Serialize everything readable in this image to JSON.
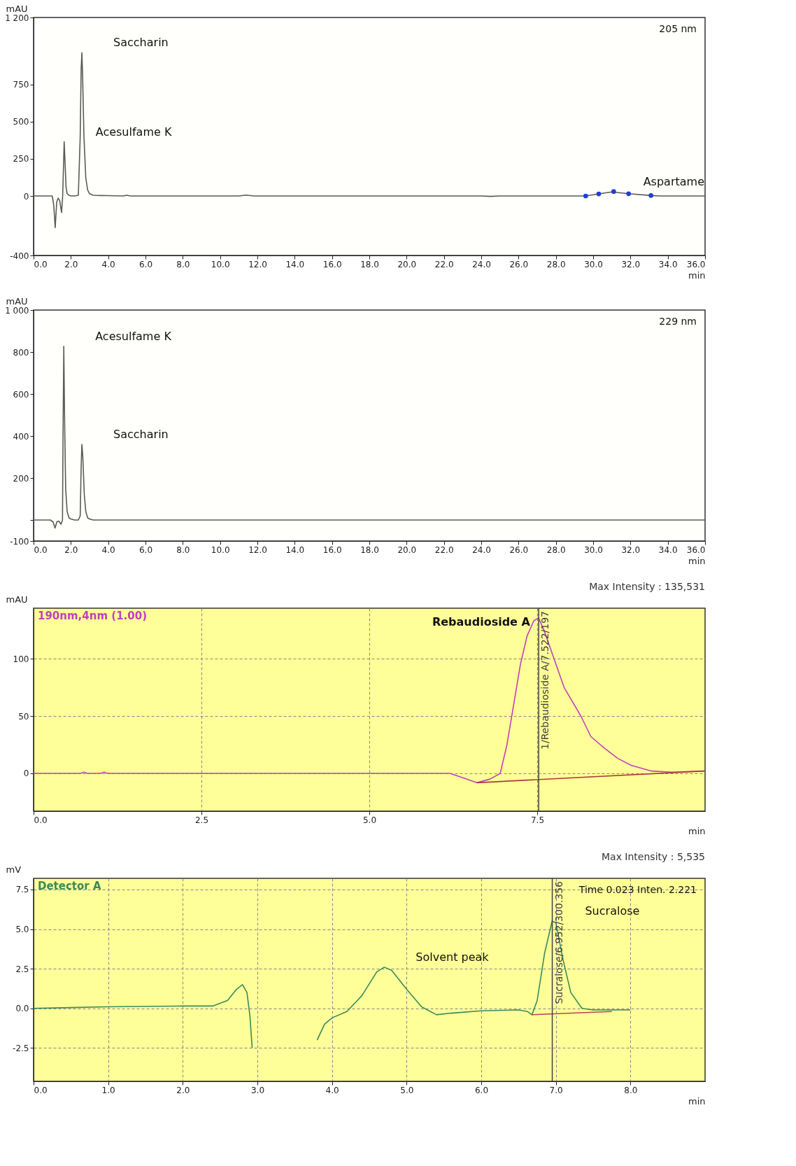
{
  "chart_data": [
    {
      "type": "line",
      "xlabel": "min",
      "ylabel": "mAU",
      "xlim": [
        0,
        36
      ],
      "ylim": [
        -400,
        1200
      ],
      "xticks": [
        {
          "value": 0,
          "label": "0.0"
        },
        {
          "value": 2,
          "label": "2.0"
        },
        {
          "value": 4,
          "label": "4.0"
        },
        {
          "value": 6,
          "label": "6.0"
        },
        {
          "value": 8,
          "label": "8.0"
        },
        {
          "value": 10,
          "label": "10.0"
        },
        {
          "value": 12,
          "label": "12.0"
        },
        {
          "value": 14,
          "label": "14.0"
        },
        {
          "value": 16,
          "label": "16.0"
        },
        {
          "value": 18,
          "label": "18.0"
        },
        {
          "value": 20,
          "label": "20.0"
        },
        {
          "value": 22,
          "label": "22.0"
        },
        {
          "value": 24,
          "label": "24.0"
        },
        {
          "value": 26,
          "label": "26.0"
        },
        {
          "value": 28,
          "label": "28.0"
        },
        {
          "value": 30,
          "label": "30.0"
        },
        {
          "value": 32,
          "label": "32.0"
        },
        {
          "value": 34,
          "label": "34.0"
        },
        {
          "value": 36,
          "label": "36.0"
        }
      ],
      "yticks": [
        -400,
        0,
        250,
        500,
        750,
        {
          "value": 1200,
          "label": "1 200"
        }
      ],
      "series": [
        {
          "color": "#5a5a5a",
          "x": [
            0,
            1.0,
            1.08,
            1.16,
            1.24,
            1.32,
            1.4,
            1.5,
            1.56,
            1.6,
            1.64,
            1.68,
            1.74,
            1.8,
            1.9,
            2.0,
            2.2,
            2.4,
            2.5,
            2.55,
            2.59,
            2.63,
            2.7,
            2.8,
            2.9,
            3.0,
            3.2,
            3.6,
            4.0,
            4.8,
            5.0,
            5.2,
            11.0,
            11.4,
            11.8,
            24.0,
            24.5,
            25.0,
            29.6,
            30.3,
            31.0,
            31.9,
            33.1,
            33.6,
            36.0
          ],
          "values": [
            0,
            0,
            -60,
            -213,
            -40,
            -15,
            -30,
            -111,
            0,
            180,
            364,
            250,
            60,
            15,
            5,
            0,
            0,
            5,
            400,
            850,
            963,
            800,
            400,
            120,
            40,
            15,
            5,
            3,
            2,
            0,
            5,
            0,
            0,
            6,
            0,
            0,
            -3,
            0,
            0,
            14,
            27,
            15,
            3,
            0,
            0
          ]
        },
        {
          "type": "scatter",
          "marker": "circle",
          "color": "#1f3fd0",
          "x": [
            29.6,
            30.3,
            31.1,
            31.9,
            33.1
          ],
          "values": [
            0,
            14,
            30,
            15,
            3
          ]
        }
      ],
      "annotations": [
        {
          "text": "Saccharin",
          "x": 2.59,
          "y": 963
        },
        {
          "text": "Acesulfame K",
          "x": 1.64,
          "y": 364
        },
        {
          "text": "Aspartame",
          "x": 31.0,
          "y": 27
        },
        "205 nm"
      ]
    },
    {
      "type": "line",
      "xlabel": "min",
      "ylabel": "mAU",
      "xlim": [
        0,
        36
      ],
      "ylim": [
        -100,
        1000
      ],
      "xticks": [
        {
          "value": 0,
          "label": "0.0"
        },
        {
          "value": 2,
          "label": "2.0"
        },
        {
          "value": 4,
          "label": "4.0"
        },
        {
          "value": 6,
          "label": "6.0"
        },
        {
          "value": 8,
          "label": "8.0"
        },
        {
          "value": 10,
          "label": "10.0"
        },
        {
          "value": 12,
          "label": "12.0"
        },
        {
          "value": 14,
          "label": "14.0"
        },
        {
          "value": 16,
          "label": "16.0"
        },
        {
          "value": 18,
          "label": "18.0"
        },
        {
          "value": 20,
          "label": "20.0"
        },
        {
          "value": 22,
          "label": "22.0"
        },
        {
          "value": 24,
          "label": "24.0"
        },
        {
          "value": 26,
          "label": "26.0"
        },
        {
          "value": 28,
          "label": "28.0"
        },
        {
          "value": 30,
          "label": "30.0"
        },
        {
          "value": 32,
          "label": "32.0"
        },
        {
          "value": 34,
          "label": "34.0"
        },
        {
          "value": 36,
          "label": "36.0"
        }
      ],
      "yticks": [
        -100,
        {
          "value": 0,
          "label": null
        },
        200,
        400,
        600,
        800,
        {
          "value": 1000,
          "label": "1 000"
        }
      ],
      "series": [
        {
          "color": "#5a5a5a",
          "x": [
            0,
            0.9,
            1.05,
            1.15,
            1.25,
            1.35,
            1.47,
            1.55,
            1.58,
            1.62,
            1.66,
            1.72,
            1.8,
            1.9,
            2.0,
            2.2,
            2.4,
            2.5,
            2.55,
            2.59,
            2.64,
            2.72,
            2.8,
            2.9,
            3.0,
            3.2,
            3.4,
            36.0
          ],
          "values": [
            0,
            0,
            -10,
            -38,
            -8,
            -5,
            -20,
            0,
            400,
            827,
            500,
            150,
            40,
            10,
            5,
            0,
            0,
            20,
            250,
            360,
            300,
            120,
            40,
            10,
            5,
            0,
            0,
            0
          ]
        }
      ],
      "annotations": [
        {
          "text": "Acesulfame K",
          "x": 1.62,
          "y": 827
        },
        {
          "text": "Saccharin",
          "x": 2.59,
          "y": 360
        },
        "229 nm"
      ]
    },
    {
      "type": "line",
      "subtitle": "Max Intensity : 135,531",
      "xlabel": "min",
      "ylabel": "mAU",
      "xlim": [
        0,
        10
      ],
      "ylim": [
        -33,
        144
      ],
      "xticks": [
        {
          "value": 0,
          "label": "0.0"
        },
        {
          "value": 2.5,
          "label": "2.5"
        },
        {
          "value": 5,
          "label": "5.0"
        },
        {
          "value": 7.5,
          "label": "7.5"
        }
      ],
      "yticks": [
        0,
        50,
        100
      ],
      "grid": true,
      "legend": "top left",
      "series": [
        {
          "name": "190nm,4nm (1.00)",
          "color": "#c040c0",
          "x": [
            0,
            0.7,
            0.75,
            0.8,
            1.0,
            1.05,
            1.1,
            6.2,
            6.4,
            6.6,
            6.8,
            6.95,
            7.05,
            7.15,
            7.25,
            7.35,
            7.45,
            7.52,
            7.6,
            7.75,
            7.9,
            8.15,
            8.3,
            8.5,
            8.7,
            8.9,
            9.2,
            9.5,
            10.0
          ],
          "values": [
            0,
            0,
            1,
            0,
            0,
            1,
            0,
            0,
            -4,
            -8.2,
            -5,
            0,
            25,
            60,
            95,
            120,
            133,
            135.5,
            125,
            100,
            75,
            50,
            32,
            22,
            13,
            7,
            2,
            1,
            2
          ]
        },
        {
          "color": "#a83c3c",
          "x": [
            6.6,
            10.0
          ],
          "values": [
            -8.2,
            2
          ]
        }
      ],
      "ref_lines": [
        {
          "axis": "x",
          "value": 7.522,
          "label": "1/Rebaudioside A/7.522/197",
          "color": "#404040"
        }
      ],
      "annotations": [
        {
          "text": "Rebaudioside A",
          "x": 7.52,
          "y": 135.5
        }
      ]
    },
    {
      "type": "line",
      "subtitle": "Max Intensity : 5,535",
      "xlabel": "min",
      "ylabel": "mV",
      "xlim": [
        0,
        9.0
      ],
      "ylim": [
        -4.6,
        8.2
      ],
      "xticks": [
        {
          "value": 0,
          "label": "0.0"
        },
        {
          "value": 1,
          "label": "1.0"
        },
        {
          "value": 2,
          "label": "2.0"
        },
        {
          "value": 3,
          "label": "3.0"
        },
        {
          "value": 4,
          "label": "4.0"
        },
        {
          "value": 5,
          "label": "5.0"
        },
        {
          "value": 6,
          "label": "6.0"
        },
        {
          "value": 7,
          "label": "7.0"
        },
        {
          "value": 8,
          "label": "8.0"
        }
      ],
      "yticks": [
        -2.5,
        {
          "value": 0,
          "label": "0.0"
        },
        2.5,
        {
          "value": 5,
          "label": "5.0"
        },
        7.5
      ],
      "grid": true,
      "legend": "top left",
      "series": [
        {
          "name": "Detector A",
          "color": "#3a8a5a",
          "x": [
            0,
            0.5,
            1.0,
            2.0,
            2.4,
            2.6,
            2.72,
            2.8,
            2.86,
            2.9,
            2.93,
            2.96,
            3.3,
            3.68,
            3.8,
            3.9,
            4.0,
            4.2,
            4.4,
            4.6,
            4.7,
            4.8,
            5.0,
            5.2,
            5.4,
            5.6,
            6.0,
            6.5,
            6.62,
            6.68,
            6.75,
            6.85,
            6.95,
            7.0,
            7.1,
            7.2,
            7.35,
            7.5,
            8.0
          ],
          "values": [
            0,
            0.05,
            0.1,
            0.15,
            0.15,
            0.5,
            1.2,
            1.5,
            1.0,
            -0.5,
            -2.5,
            null,
            null,
            null,
            -2.0,
            -1.0,
            -0.6,
            -0.2,
            0.8,
            2.3,
            2.6,
            2.4,
            1.2,
            0.1,
            -0.4,
            -0.3,
            -0.15,
            -0.1,
            -0.2,
            -0.4,
            0.5,
            3.5,
            5.5,
            5.4,
            3.0,
            1.0,
            0.0,
            -0.1,
            -0.1
          ]
        },
        {
          "color": "#c04050",
          "x": [
            6.68,
            7.75
          ],
          "values": [
            -0.4,
            -0.2
          ]
        }
      ],
      "ref_lines": [
        {
          "axis": "x",
          "value": 6.952,
          "label": "Sucralose/6.952/300.356",
          "color": "#404040"
        }
      ],
      "annotations": [
        {
          "text": "Solvent peak",
          "x": 4.7,
          "y": 2.6
        },
        {
          "text": "Sucralose",
          "x": 6.97,
          "y": 5.5
        },
        "Time 0.023 Inten. 2.221"
      ]
    }
  ]
}
